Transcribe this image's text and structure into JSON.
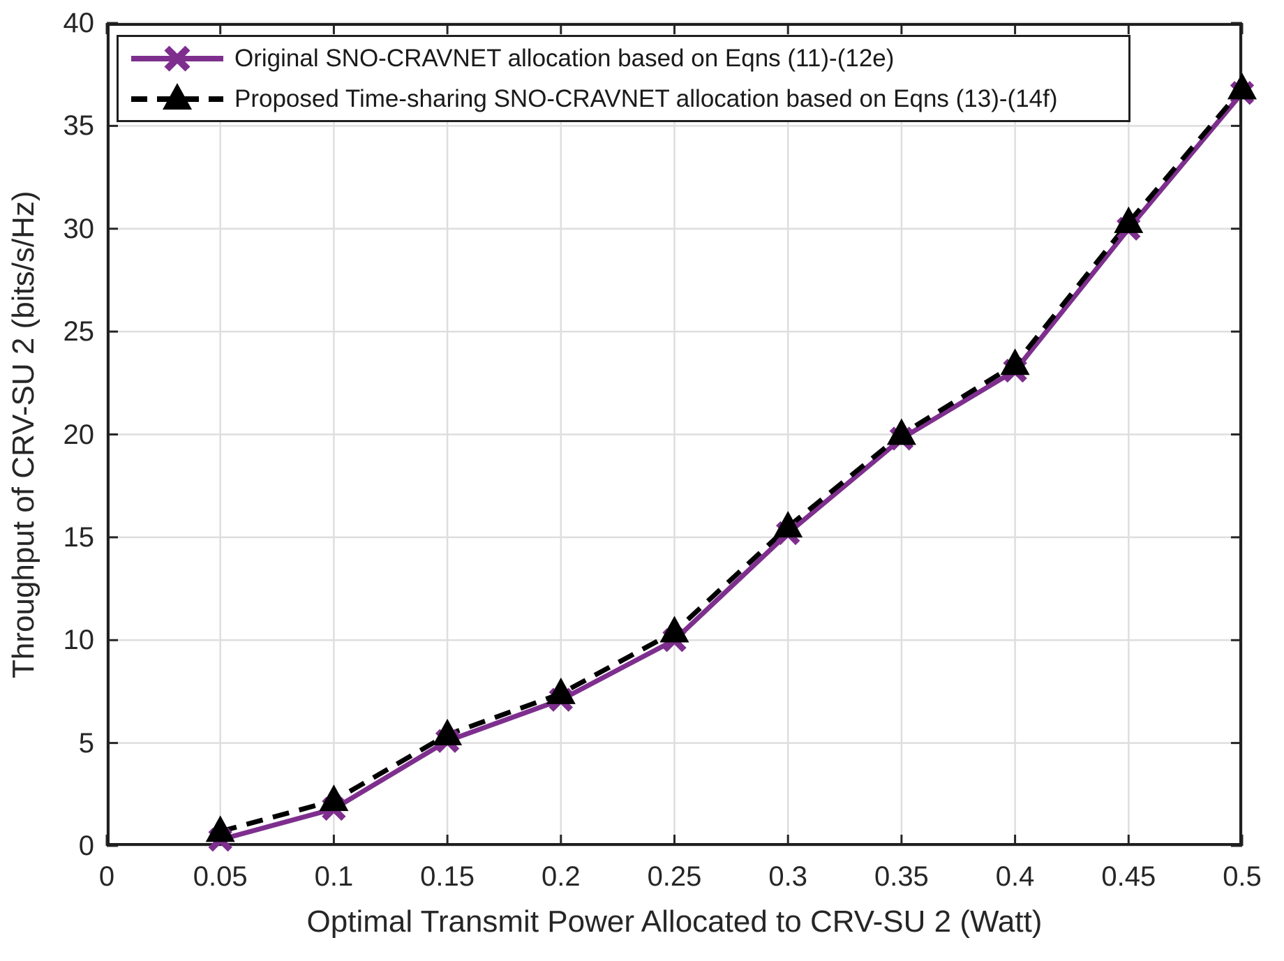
{
  "figure": {
    "background": "#ffffff",
    "frame_color": "#1f1f1f",
    "grid_color": "#dedede",
    "text_color": "#262626"
  },
  "chart_data": {
    "type": "line",
    "title": "",
    "xlabel": "Optimal Transmit Power Allocated to CRV-SU 2 (Watt)",
    "ylabel": "Throughput of CRV-SU 2 (bits/s/Hz)",
    "xlim": [
      0,
      0.5
    ],
    "ylim": [
      0,
      40
    ],
    "grid": true,
    "legend_position": "top-left",
    "x_ticks": [
      0,
      0.05,
      0.1,
      0.15,
      0.2,
      0.25,
      0.3,
      0.35,
      0.4,
      0.45,
      0.5
    ],
    "x_tick_labels": [
      "0",
      "0.05",
      "0.1",
      "0.15",
      "0.2",
      "0.25",
      "0.3",
      "0.35",
      "0.4",
      "0.45",
      "0.5"
    ],
    "y_ticks": [
      0,
      5,
      10,
      15,
      20,
      25,
      30,
      35,
      40
    ],
    "y_tick_labels": [
      "0",
      "5",
      "10",
      "15",
      "20",
      "25",
      "30",
      "35",
      "40"
    ],
    "x": [
      0.05,
      0.1,
      0.15,
      0.2,
      0.25,
      0.3,
      0.35,
      0.4,
      0.45,
      0.5
    ],
    "series": [
      {
        "name": "Original SNO-CRAVNET allocation based on Eqns (11)-(12e)",
        "color": "#7E2F8E",
        "line_style": "solid",
        "marker": "x",
        "values": [
          0.3,
          1.8,
          5.1,
          7.1,
          10.0,
          15.2,
          19.8,
          23.1,
          30.0,
          36.6
        ]
      },
      {
        "name": "Proposed Time-sharing SNO-CRAVNET allocation based on Eqns (13)-(14f)",
        "color": "#000000",
        "line_style": "dashed",
        "marker": "triangle-up",
        "values": [
          0.7,
          2.2,
          5.4,
          7.4,
          10.4,
          15.5,
          20.0,
          23.4,
          30.3,
          36.8
        ]
      }
    ]
  }
}
